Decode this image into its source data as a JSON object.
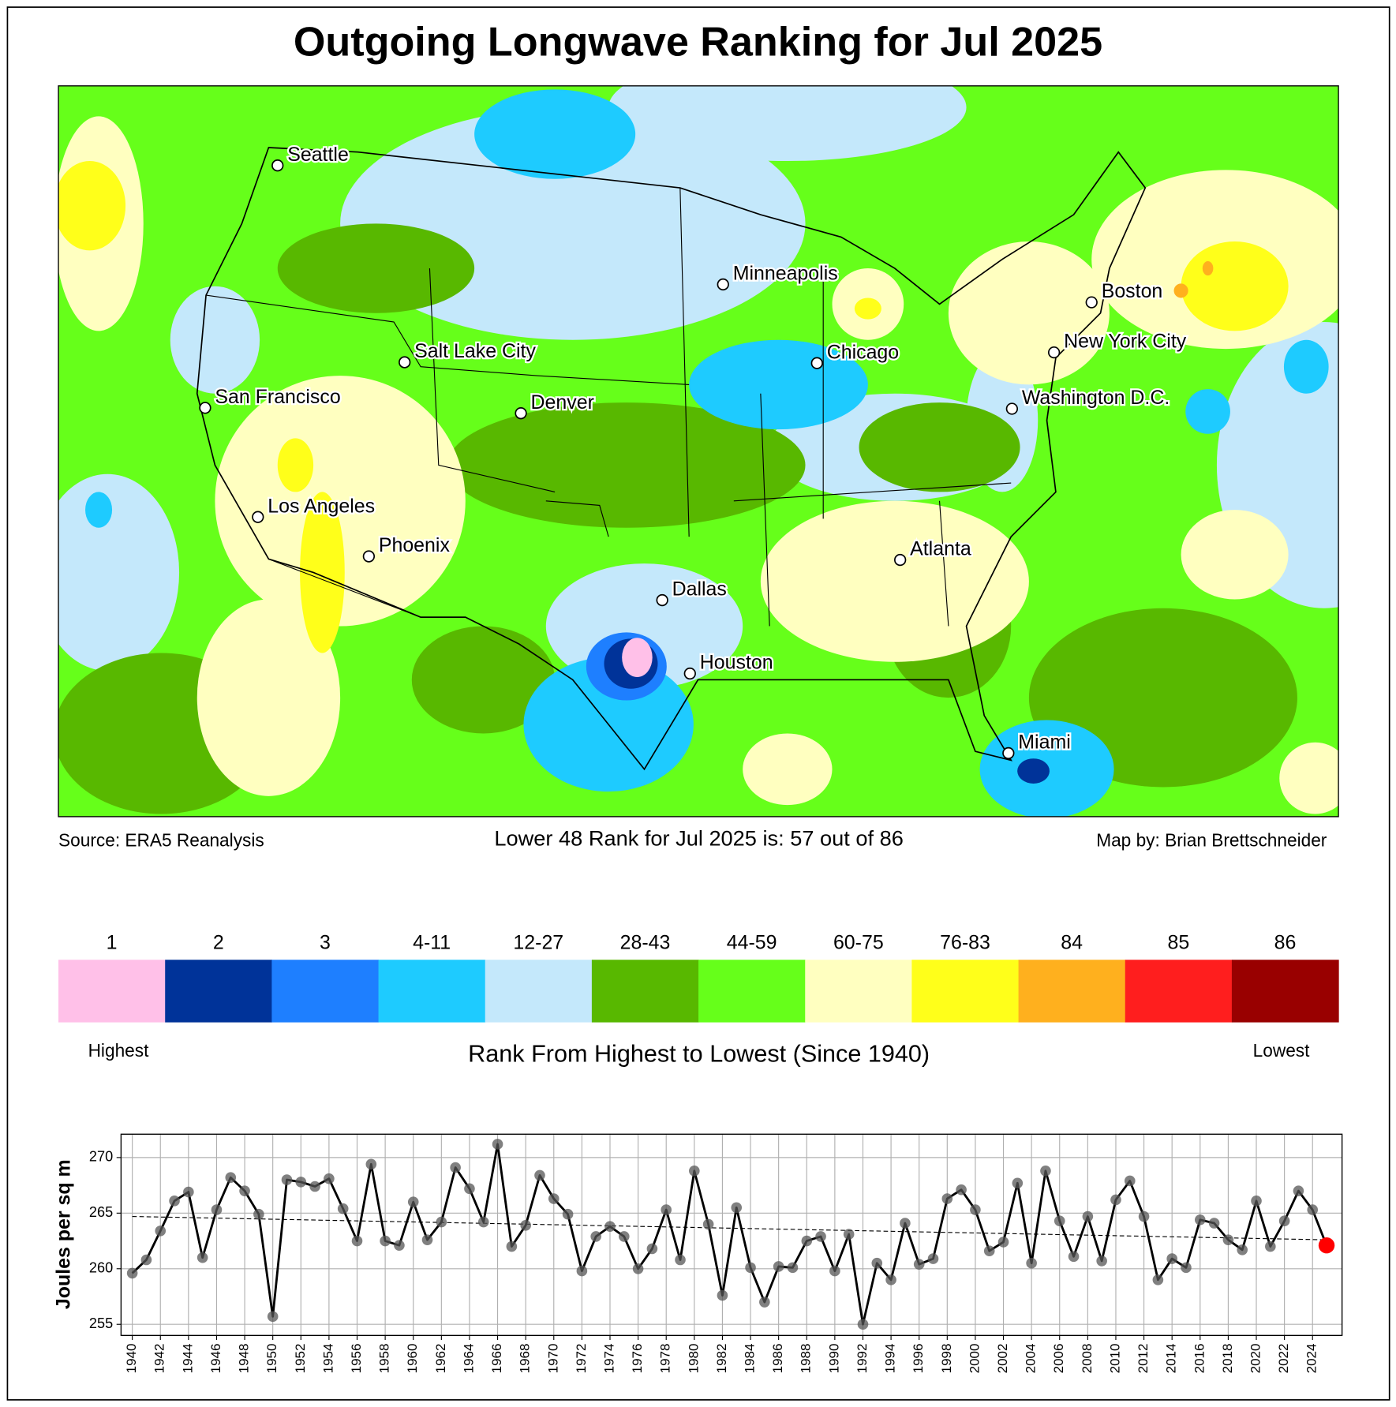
{
  "title": "Outgoing Longwave Ranking for Jul 2025",
  "map": {
    "cities": [
      "Seattle",
      "Minneapolis",
      "Boston",
      "Salt Lake City",
      "Chicago",
      "New York City",
      "San Francisco",
      "Denver",
      "Washington D.C.",
      "Los Angeles",
      "Phoenix",
      "Atlanta",
      "Dallas",
      "Houston",
      "Miami"
    ],
    "source": "Source: ERA5 Reanalysis",
    "rank_text": "Lower 48 Rank for Jul 2025 is: 57 out of 86",
    "credit": "Map by: Brian Brettschneider"
  },
  "legend": {
    "title": "Rank From Highest to Lowest (Since 1940)",
    "low_label": "Highest",
    "high_label": "Lowest",
    "classes": [
      {
        "label": "1",
        "color": "#ffc0e8"
      },
      {
        "label": "2",
        "color": "#003399"
      },
      {
        "label": "3",
        "color": "#1e7fff"
      },
      {
        "label": "4-11",
        "color": "#1ecbff"
      },
      {
        "label": "12-27",
        "color": "#c4e8fb"
      },
      {
        "label": "28-43",
        "color": "#58b800"
      },
      {
        "label": "44-59",
        "color": "#66ff1a"
      },
      {
        "label": "60-75",
        "color": "#ffffc0"
      },
      {
        "label": "76-83",
        "color": "#ffff1a"
      },
      {
        "label": "84",
        "color": "#ffb01e"
      },
      {
        "label": "85",
        "color": "#ff1e1e"
      },
      {
        "label": "86",
        "color": "#990000"
      }
    ]
  },
  "chart_data": {
    "type": "line",
    "ylabel": "Joules per sq m",
    "x": [
      1940,
      1941,
      1942,
      1943,
      1944,
      1945,
      1946,
      1947,
      1948,
      1949,
      1950,
      1951,
      1952,
      1953,
      1954,
      1955,
      1956,
      1957,
      1958,
      1959,
      1960,
      1961,
      1962,
      1963,
      1964,
      1965,
      1966,
      1967,
      1968,
      1969,
      1970,
      1971,
      1972,
      1973,
      1974,
      1975,
      1976,
      1977,
      1978,
      1979,
      1980,
      1981,
      1982,
      1983,
      1984,
      1985,
      1986,
      1987,
      1988,
      1989,
      1990,
      1991,
      1992,
      1993,
      1994,
      1995,
      1996,
      1997,
      1998,
      1999,
      2000,
      2001,
      2002,
      2003,
      2004,
      2005,
      2006,
      2007,
      2008,
      2009,
      2010,
      2011,
      2012,
      2013,
      2014,
      2015,
      2016,
      2017,
      2018,
      2019,
      2020,
      2021,
      2022,
      2023,
      2024,
      2025
    ],
    "values": [
      259.6,
      260.8,
      263.4,
      266.1,
      266.9,
      261.0,
      265.3,
      268.2,
      267.0,
      264.9,
      255.7,
      268.0,
      267.8,
      267.4,
      268.1,
      265.4,
      262.5,
      269.4,
      262.5,
      262.1,
      266.0,
      262.6,
      264.2,
      269.1,
      267.2,
      264.2,
      271.2,
      262.0,
      263.9,
      268.4,
      266.3,
      264.9,
      259.8,
      262.9,
      263.8,
      262.9,
      260.0,
      261.8,
      265.3,
      260.8,
      268.8,
      264.0,
      257.6,
      265.5,
      260.1,
      257.0,
      260.2,
      260.1,
      262.5,
      262.9,
      259.8,
      263.1,
      255.0,
      260.5,
      259.0,
      264.1,
      260.4,
      260.9,
      266.3,
      267.1,
      265.3,
      261.6,
      262.4,
      267.7,
      260.5,
      268.8,
      264.3,
      261.1,
      264.7,
      260.7,
      266.2,
      267.9,
      264.7,
      259.0,
      260.9,
      260.1,
      264.4,
      264.1,
      262.6,
      261.7,
      266.1,
      262.0,
      264.3,
      267.0,
      265.3,
      262.1
    ],
    "color": "#000000",
    "marker_color": "#555555",
    "highlight_color": "#ff0000",
    "trend": {
      "x": [
        1940,
        2025
      ],
      "values": [
        264.7,
        262.6
      ]
    },
    "xlim": [
      1939.2,
      2026.1
    ],
    "ylim": [
      254.0,
      272.1
    ],
    "xticks": [
      1940,
      1942,
      1944,
      1946,
      1948,
      1950,
      1952,
      1954,
      1956,
      1958,
      1960,
      1962,
      1964,
      1966,
      1968,
      1970,
      1972,
      1974,
      1976,
      1978,
      1980,
      1982,
      1984,
      1986,
      1988,
      1990,
      1992,
      1994,
      1996,
      1998,
      2000,
      2002,
      2004,
      2006,
      2008,
      2010,
      2012,
      2014,
      2016,
      2018,
      2020,
      2022,
      2024
    ],
    "yticks": [
      255,
      260,
      265,
      270
    ],
    "grid": true
  }
}
